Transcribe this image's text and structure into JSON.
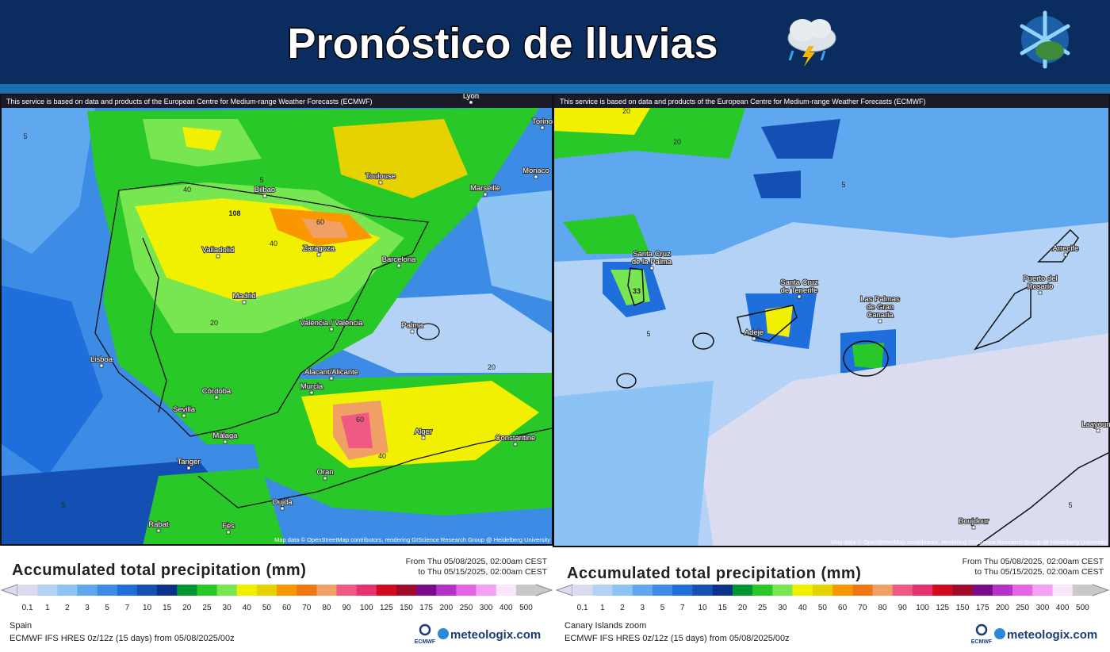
{
  "header": {
    "title": "Pronóstico de lluvias"
  },
  "panels": [
    {
      "disclaimer": "This service is based on data and products of the European Centre for Medium-range Weather Forecasts (ECMWF)",
      "places": [
        "Toulouse",
        "Marseille",
        "Monaco",
        "Torino",
        "Lyon",
        "Bilbao",
        "Valladolid",
        "Zaragoza",
        "Barcelona",
        "Madrid",
        "Valencia / València",
        "Palma",
        "Alacant/Alicante",
        "Murcia",
        "Lisboa",
        "Córdoba",
        "Sevilla",
        "Málaga",
        "Tanger",
        "Alger",
        "Constantine",
        "Oran",
        "Oujda",
        "Rabat",
        "Fès"
      ],
      "contour_labels": [
        "108",
        "60",
        "40",
        "40",
        "20",
        "20",
        "5",
        "5",
        "5",
        "60",
        "40"
      ],
      "attribution": "Map data © OpenStreetMap contributors, rendering GIScience Research Group @ Heidelberg University",
      "legend": {
        "title": "Accumulated total precipitation (mm)",
        "from": "From Thu 05/08/2025, 02:00am CEST",
        "to": "to Thu 05/15/2025, 02:00am CEST",
        "scale": [
          0.1,
          1,
          2,
          3,
          5,
          7,
          10,
          15,
          20,
          25,
          30,
          40,
          50,
          60,
          70,
          80,
          90,
          100,
          125,
          150,
          175,
          200,
          250,
          300,
          400,
          500
        ],
        "colors": [
          "#dcdcf0",
          "#b4d2f5",
          "#8cc3f5",
          "#5fa8f0",
          "#3c8ce6",
          "#1e6edc",
          "#1450b4",
          "#0a328c",
          "#009632",
          "#28c828",
          "#78e650",
          "#f0f000",
          "#e6d200",
          "#fa9600",
          "#f07814",
          "#f0a064",
          "#f05a82",
          "#e6326e",
          "#d20a1e",
          "#a00a28",
          "#7a0a8c",
          "#b432c8",
          "#e664e6",
          "#f5a0f5",
          "#fae6fa",
          "#c8c8c8"
        ]
      },
      "region": "Spain",
      "model": "ECMWF IFS HRES 0z/12z (15 days) from 05/08/2025/00z",
      "logo_ecmwf": "ECMWF",
      "logo_brand": "meteologix.com"
    },
    {
      "disclaimer": "This service is based on data and products of the European Centre for Medium-range Weather Forecasts (ECMWF)",
      "places": [
        "Santa Cruz de la Palma",
        "Santa Cruz de Tenerife",
        "Adeje",
        "Las Palmas de Gran Canaria",
        "Puerto del Rosario",
        "Arrecife",
        "Laayoune",
        "Boujdour"
      ],
      "contour_labels": [
        "33",
        "20",
        "20",
        "5",
        "5",
        "5"
      ],
      "attribution": "Map data © OpenStreetMap contributors, rendering GIScience Research Group @ Heidelberg University",
      "legend": {
        "title": "Accumulated total precipitation (mm)",
        "from": "From Thu 05/08/2025, 02:00am CEST",
        "to": "to Thu 05/15/2025, 02:00am CEST",
        "scale": [
          0.1,
          1,
          2,
          3,
          5,
          7,
          10,
          15,
          20,
          25,
          30,
          40,
          50,
          60,
          70,
          80,
          90,
          100,
          125,
          150,
          175,
          200,
          250,
          300,
          400,
          500
        ],
        "colors": [
          "#dcdcf0",
          "#b4d2f5",
          "#8cc3f5",
          "#5fa8f0",
          "#3c8ce6",
          "#1e6edc",
          "#1450b4",
          "#0a328c",
          "#009632",
          "#28c828",
          "#78e650",
          "#f0f000",
          "#e6d200",
          "#fa9600",
          "#f07814",
          "#f0a064",
          "#f05a82",
          "#e6326e",
          "#d20a1e",
          "#a00a28",
          "#7a0a8c",
          "#b432c8",
          "#e664e6",
          "#f5a0f5",
          "#fae6fa",
          "#c8c8c8"
        ]
      },
      "region": "Canary Islands zoom",
      "model": "ECMWF IFS HRES 0z/12z (15 days) from 05/08/2025/00z",
      "logo_ecmwf": "ECMWF",
      "logo_brand": "meteologix.com"
    }
  ]
}
